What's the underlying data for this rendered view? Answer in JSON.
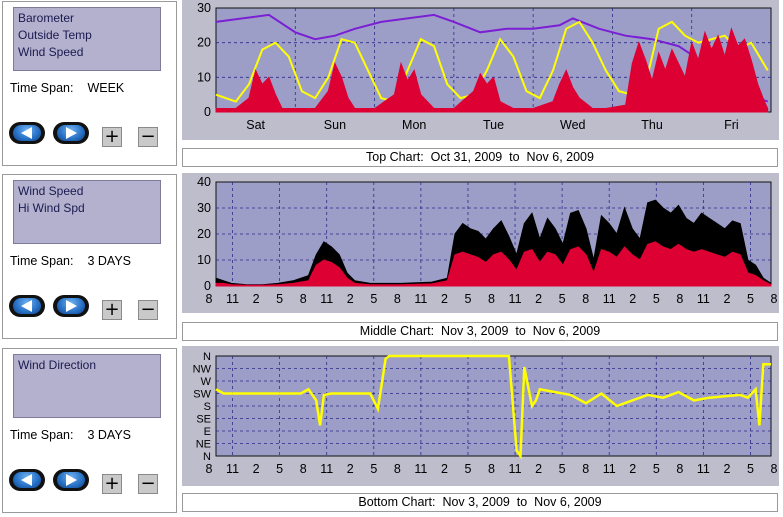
{
  "panels": [
    {
      "series": [
        "Barometer",
        "Outside Temp",
        "Wind Speed"
      ],
      "time_span_label": "Time Span:",
      "time_span_value": "WEEK",
      "plus": "+",
      "minus": "−",
      "caption": "Top Chart:  Oct 31, 2009  to  Nov 6, 2009"
    },
    {
      "series": [
        "Wind Speed",
        "Hi Wind Spd"
      ],
      "time_span_label": "Time Span:",
      "time_span_value": "3 DAYS",
      "plus": "+",
      "minus": "−",
      "caption": "Middle Chart:  Nov 3, 2009  to  Nov 6, 2009"
    },
    {
      "series": [
        "Wind Direction"
      ],
      "time_span_label": "Time Span:",
      "time_span_value": "3 DAYS",
      "plus": "+",
      "minus": "−",
      "caption": "Bottom Chart:  Nov 3, 2009  to  Nov 6, 2009"
    }
  ],
  "colors": {
    "chart_bg": "#9d9ec8",
    "grid": "#2b2b8a",
    "barometer": "#7a1fd4",
    "outside_temp": "#ffff00",
    "wind_speed": "#dd0033",
    "hi_wind_spd": "#000000",
    "wind_direction": "#ffff00"
  },
  "chart_data": [
    {
      "type": "line",
      "x_ticks": [
        "Sat",
        "Sun",
        "Mon",
        "Tue",
        "Wed",
        "Thu",
        "Fri"
      ],
      "ylim": [
        0,
        30
      ],
      "y_ticks": [
        "0",
        "10",
        "20",
        "30"
      ],
      "x_range_hours": [
        0,
        168
      ],
      "series": [
        {
          "name": "Barometer",
          "color": "purple",
          "x": [
            0,
            8,
            16,
            24,
            30,
            36,
            42,
            50,
            58,
            66,
            72,
            80,
            88,
            96,
            104,
            108,
            116,
            124,
            132,
            140,
            148,
            156,
            160,
            164,
            167
          ],
          "values": [
            26,
            27,
            28,
            23,
            21,
            22,
            24,
            26,
            27,
            28,
            26,
            23,
            24,
            24,
            25,
            27,
            24,
            22,
            21,
            19,
            14,
            8,
            5,
            4,
            3
          ]
        },
        {
          "name": "Outside Temp",
          "color": "yellow",
          "x": [
            0,
            6,
            10,
            14,
            18,
            22,
            26,
            30,
            34,
            38,
            42,
            46,
            50,
            54,
            58,
            62,
            66,
            70,
            74,
            78,
            82,
            86,
            90,
            94,
            98,
            102,
            106,
            110,
            114,
            118,
            122,
            126,
            130,
            134,
            138,
            142,
            146,
            150,
            154,
            158,
            162,
            167
          ],
          "values": [
            5,
            3,
            8,
            18,
            20,
            16,
            6,
            4,
            10,
            21,
            20,
            12,
            4,
            3,
            12,
            21,
            19,
            8,
            4,
            5,
            12,
            21,
            16,
            6,
            4,
            12,
            24,
            26,
            20,
            12,
            6,
            5,
            8,
            24,
            26,
            22,
            20,
            21,
            22,
            18,
            20,
            12
          ]
        },
        {
          "name": "Wind Speed",
          "color": "red",
          "x": [
            0,
            6,
            10,
            12,
            14,
            16,
            18,
            20,
            24,
            30,
            34,
            36,
            38,
            40,
            42,
            48,
            54,
            56,
            58,
            60,
            62,
            66,
            72,
            78,
            80,
            82,
            84,
            86,
            90,
            96,
            102,
            104,
            106,
            108,
            110,
            114,
            118,
            124,
            126,
            128,
            130,
            132,
            134,
            136,
            138,
            140,
            142,
            144,
            146,
            148,
            150,
            152,
            154,
            156,
            158,
            160,
            162,
            164,
            166,
            167
          ],
          "values": [
            1,
            1,
            4,
            12,
            8,
            10,
            5,
            1,
            1,
            1,
            6,
            14,
            10,
            4,
            1,
            1,
            5,
            14,
            9,
            12,
            5,
            1,
            1,
            6,
            11,
            8,
            10,
            3,
            1,
            1,
            3,
            8,
            12,
            7,
            4,
            1,
            1,
            2,
            14,
            20,
            15,
            9,
            17,
            12,
            18,
            14,
            10,
            20,
            15,
            23,
            18,
            22,
            16,
            24,
            19,
            21,
            15,
            8,
            3,
            1
          ]
        }
      ]
    },
    {
      "type": "area",
      "x_ticks": [
        "8",
        "11",
        "2",
        "5",
        "8",
        "11",
        "2",
        "5",
        "8",
        "11",
        "2",
        "5",
        "8",
        "11",
        "2",
        "5",
        "8",
        "11",
        "2",
        "5",
        "8",
        "11",
        "2",
        "5",
        "8"
      ],
      "ylim": [
        0,
        40
      ],
      "y_ticks": [
        "0",
        "10",
        "20",
        "30",
        "40"
      ],
      "x_range_hours": [
        0,
        72
      ],
      "series": [
        {
          "name": "Hi Wind Spd",
          "color": "black",
          "x": [
            0,
            1,
            2,
            4,
            6,
            8,
            10,
            12,
            13,
            14,
            15,
            16,
            17,
            18,
            20,
            24,
            28,
            30,
            31,
            32,
            33,
            34,
            35,
            36,
            37,
            38,
            39,
            40,
            41,
            42,
            43,
            44,
            45,
            46,
            47,
            48,
            49,
            50,
            51,
            52,
            53,
            54,
            55,
            56,
            57,
            58,
            59,
            60,
            61,
            62,
            63,
            64,
            65,
            66,
            67,
            68,
            69,
            70,
            71,
            72
          ],
          "values": [
            3,
            2,
            1,
            0.5,
            0.5,
            1,
            2,
            4,
            12,
            17,
            15,
            12,
            5,
            2,
            1,
            1,
            1.5,
            3,
            20,
            24,
            22,
            21,
            18,
            22,
            25,
            19,
            12,
            24,
            28,
            18,
            26,
            22,
            16,
            28,
            29,
            22,
            10,
            27,
            24,
            20,
            30,
            22,
            18,
            32,
            33,
            30,
            28,
            31,
            26,
            24,
            28,
            26,
            24,
            22,
            25,
            24,
            10,
            8,
            3,
            1
          ]
        },
        {
          "name": "Wind Speed",
          "color": "red",
          "x": [
            0,
            1,
            2,
            4,
            6,
            8,
            10,
            12,
            13,
            14,
            15,
            16,
            17,
            18,
            20,
            24,
            28,
            30,
            31,
            32,
            33,
            34,
            35,
            36,
            37,
            38,
            39,
            40,
            41,
            42,
            43,
            44,
            45,
            46,
            47,
            48,
            49,
            50,
            51,
            52,
            53,
            54,
            55,
            56,
            57,
            58,
            59,
            60,
            61,
            62,
            63,
            64,
            65,
            66,
            67,
            68,
            69,
            70,
            71,
            72
          ],
          "values": [
            1,
            1,
            0.5,
            0.3,
            0.3,
            0.5,
            1,
            2,
            8,
            10,
            9,
            7,
            3,
            1,
            0.5,
            0.5,
            0.8,
            2,
            12,
            13,
            12,
            11,
            9,
            12,
            13,
            10,
            6,
            13,
            14,
            9,
            13,
            12,
            8,
            14,
            15,
            12,
            5,
            14,
            13,
            11,
            15,
            12,
            10,
            16,
            17,
            15,
            14,
            16,
            14,
            13,
            14,
            13,
            12,
            11,
            13,
            12,
            5,
            4,
            2,
            0.5
          ]
        }
      ]
    },
    {
      "type": "line",
      "x_ticks": [
        "8",
        "11",
        "2",
        "5",
        "8",
        "11",
        "2",
        "5",
        "8",
        "11",
        "2",
        "5",
        "8",
        "11",
        "2",
        "5",
        "8",
        "11",
        "2",
        "5",
        "8",
        "11",
        "2",
        "5",
        "8"
      ],
      "y_ticks": [
        "N",
        "NE",
        "E",
        "SE",
        "S",
        "SW",
        "W",
        "NW",
        "N"
      ],
      "ylim": [
        0,
        360
      ],
      "x_range_hours": [
        0,
        72
      ],
      "series": [
        {
          "name": "Wind Direction",
          "color": "yellow",
          "x": [
            0,
            1,
            2,
            5,
            7,
            9,
            11,
            12,
            13,
            13.5,
            14,
            15,
            16,
            18,
            20,
            21,
            22,
            22.5,
            30,
            36,
            38,
            39,
            39.5,
            40,
            41,
            41.5,
            42,
            44,
            46,
            48,
            50,
            52,
            54,
            56,
            58,
            60,
            62,
            64,
            66,
            68,
            69,
            70,
            70.5,
            71,
            72
          ],
          "values": [
            240,
            225,
            225,
            225,
            225,
            225,
            225,
            240,
            200,
            110,
            220,
            225,
            225,
            225,
            225,
            170,
            350,
            360,
            360,
            360,
            360,
            20,
            0,
            320,
            180,
            200,
            240,
            230,
            220,
            190,
            225,
            180,
            200,
            220,
            210,
            230,
            200,
            210,
            215,
            220,
            210,
            240,
            110,
            330,
            330
          ]
        }
      ]
    }
  ]
}
